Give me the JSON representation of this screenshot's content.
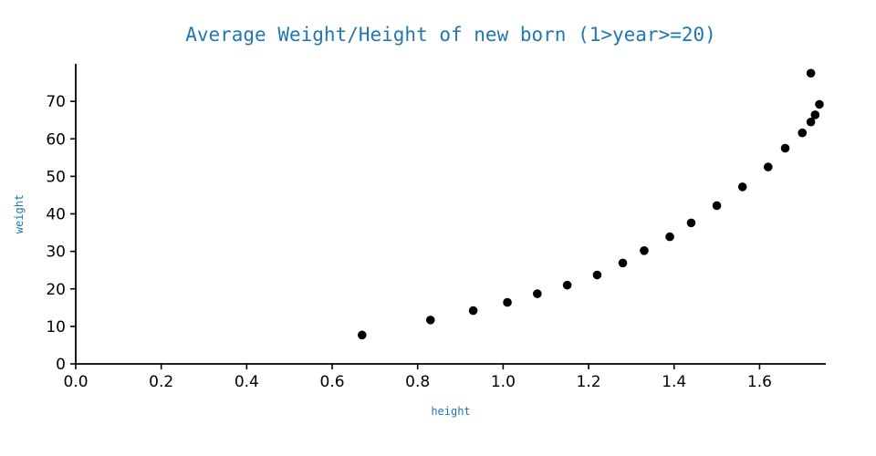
{
  "chart_data": {
    "type": "scatter",
    "title": "Average Weight/Height of new born (1>year>=20)",
    "xlabel": "height",
    "ylabel": "weight",
    "x": [
      0.67,
      0.83,
      0.93,
      1.01,
      1.08,
      1.15,
      1.22,
      1.28,
      1.33,
      1.39,
      1.44,
      1.5,
      1.56,
      1.62,
      1.66,
      1.7,
      1.72,
      1.73,
      1.74,
      1.72
    ],
    "y": [
      7.7,
      11.7,
      14.2,
      16.4,
      18.7,
      21.0,
      23.7,
      26.9,
      30.2,
      33.9,
      37.6,
      42.2,
      47.2,
      52.5,
      57.5,
      61.6,
      64.5,
      66.4,
      69.2,
      77.5
    ],
    "xlim": [
      0.0,
      1.755
    ],
    "ylim": [
      0,
      80
    ],
    "xtick_values": [
      0.0,
      0.2,
      0.4,
      0.6,
      0.8,
      1.0,
      1.2,
      1.4,
      1.6
    ],
    "xtick_labels": [
      "0.0",
      "0.2",
      "0.4",
      "0.6",
      "0.8",
      "1.0",
      "1.2",
      "1.4",
      "1.6"
    ],
    "ytick_values": [
      0,
      10,
      20,
      30,
      40,
      50,
      60,
      70
    ],
    "ytick_labels": [
      "0",
      "10",
      "20",
      "30",
      "40",
      "50",
      "60",
      "70"
    ],
    "marker_color": "#000000",
    "marker_radius": 4.8,
    "accent_color": "#1f77b4",
    "axis_color": "#000000",
    "grid": "off",
    "legend": "none"
  }
}
